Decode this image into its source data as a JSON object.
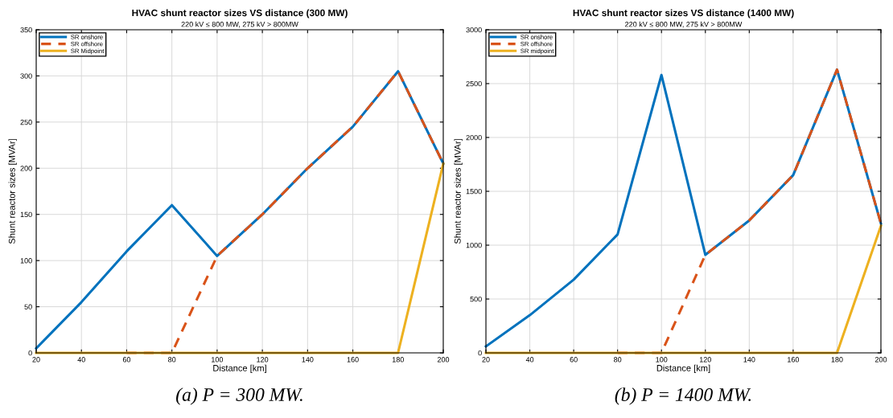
{
  "chart_data": [
    {
      "type": "line",
      "title": "HVAC shunt reactor sizes VS distance (300 MW)",
      "subtitle": "220 kV ≤ 800 MW, 275 kV > 800MW",
      "xlabel": "Distance [km]",
      "ylabel": "Shunt reactor sizes [MVAr]",
      "x": [
        20,
        40,
        60,
        80,
        100,
        120,
        140,
        160,
        180,
        200
      ],
      "series": [
        {
          "name": "SR onshore",
          "color": "#0072bd",
          "line_style": "solid",
          "values": [
            5,
            55,
            110,
            160,
            105,
            150,
            200,
            245,
            305,
            205
          ]
        },
        {
          "name": "SR offshore",
          "color": "#d95319",
          "line_style": "dashed",
          "values": [
            null,
            null,
            0,
            0,
            105,
            150,
            200,
            245,
            305,
            205
          ]
        },
        {
          "name": "SR Midpoint",
          "color": "#edb120",
          "line_style": "solid",
          "values": [
            0,
            0,
            0,
            0,
            0,
            0,
            0,
            0,
            0,
            205
          ]
        }
      ],
      "xlim": [
        20,
        200
      ],
      "xticks": [
        20,
        40,
        60,
        80,
        100,
        120,
        140,
        160,
        180,
        200
      ],
      "ylim": [
        0,
        350
      ],
      "yticks": [
        0,
        50,
        100,
        150,
        200,
        250,
        300,
        350
      ],
      "grid": true,
      "legend": "top left",
      "annotations": [
        "(a) P = 300 MW."
      ]
    },
    {
      "type": "line",
      "title": "HVAC shunt reactor sizes VS distance (1400 MW)",
      "subtitle": "220 kV ≤ 800 MW, 275 kV > 800MW",
      "xlabel": "Distance [km]",
      "ylabel": "Shunt reactor sizes [MVAr]",
      "x": [
        20,
        40,
        60,
        80,
        100,
        120,
        140,
        160,
        180,
        200
      ],
      "series": [
        {
          "name": "SR onshore",
          "color": "#0072bd",
          "line_style": "solid",
          "values": [
            60,
            350,
            680,
            1100,
            2580,
            910,
            1230,
            1650,
            2630,
            1200
          ]
        },
        {
          "name": "SR offshore",
          "color": "#d95319",
          "line_style": "dashed",
          "values": [
            null,
            null,
            null,
            0,
            0,
            910,
            1230,
            1650,
            2630,
            1200
          ]
        },
        {
          "name": "SR midpoint",
          "color": "#edb120",
          "line_style": "solid",
          "values": [
            0,
            0,
            0,
            0,
            0,
            0,
            0,
            0,
            0,
            1180
          ]
        }
      ],
      "xlim": [
        20,
        200
      ],
      "xticks": [
        20,
        40,
        60,
        80,
        100,
        120,
        140,
        160,
        180,
        200
      ],
      "ylim": [
        0,
        3000
      ],
      "yticks": [
        0,
        500,
        1000,
        1500,
        2000,
        2500,
        3000
      ],
      "grid": true,
      "legend": "top left",
      "annotations": [
        "(b) P = 1400 MW."
      ]
    }
  ]
}
